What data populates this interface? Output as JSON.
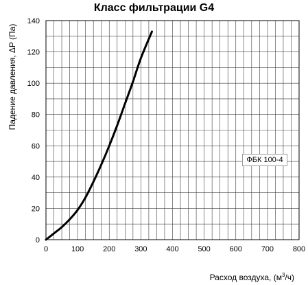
{
  "chart_data": {
    "type": "line",
    "title": "Класс фильтрации G4",
    "xlabel_main": "Расход воздуха, (м",
    "xlabel_sup": "3",
    "xlabel_end": "/ч)",
    "ylabel": "Падение давления, ΔP (Па)",
    "xlim": [
      0,
      800
    ],
    "ylim": [
      0,
      140
    ],
    "x_ticks": [
      "0",
      "100",
      "200",
      "300",
      "400",
      "500",
      "600",
      "700",
      "800"
    ],
    "y_ticks": [
      "0",
      "20",
      "40",
      "60",
      "80",
      "100",
      "120",
      "140"
    ],
    "grid": true,
    "legend_position": "right",
    "series": [
      {
        "name": "ФБК 100-4",
        "color": "#000000",
        "x": [
          0,
          25,
          50,
          75,
          100,
          125,
          150,
          175,
          200,
          225,
          250,
          275,
          300,
          335
        ],
        "y": [
          0,
          4,
          8,
          13,
          19,
          27,
          37,
          48,
          60,
          73,
          87,
          101,
          116,
          133
        ]
      }
    ]
  }
}
